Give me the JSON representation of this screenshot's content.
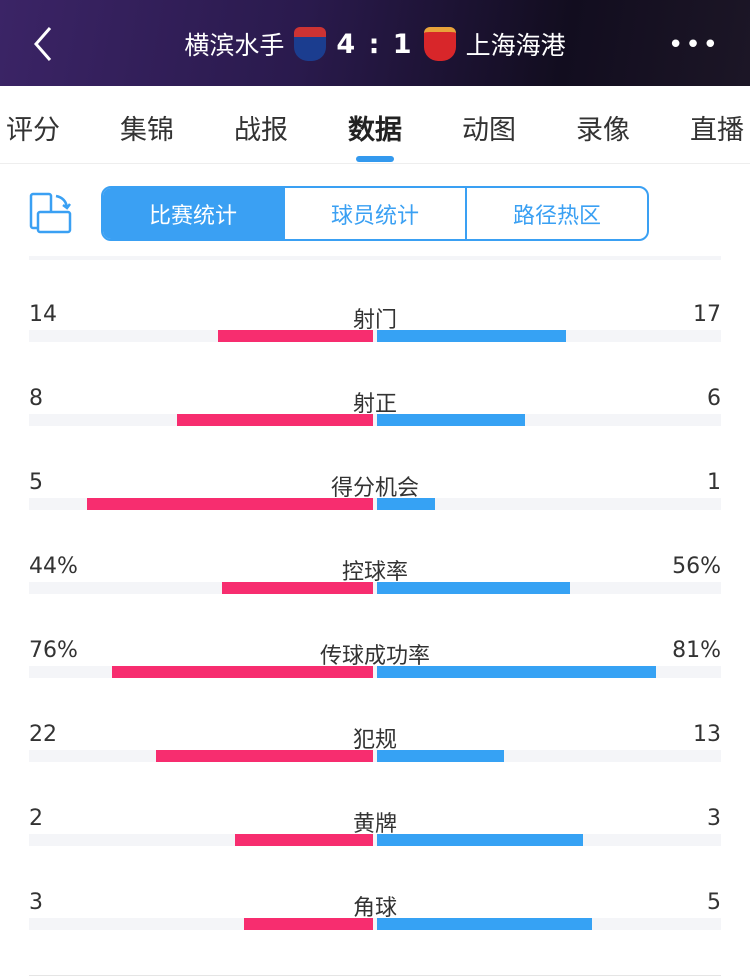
{
  "header": {
    "home_team": "横滨水手",
    "score": "4 : 1",
    "away_team": "上海海港",
    "home_color": "#1b3d8f",
    "away_color": "#d8262a"
  },
  "tabs": [
    "评分",
    "集锦",
    "战报",
    "数据",
    "动图",
    "录像",
    "直播"
  ],
  "active_tab": "数据",
  "segments": [
    "比赛统计",
    "球员统计",
    "路径热区"
  ],
  "active_segment": "比赛统计",
  "colors": {
    "home": "#f72d6f",
    "away": "#36a2f4",
    "accent": "#3aa0f3"
  },
  "stats": [
    {
      "label": "射门",
      "home": "14",
      "away": "17",
      "home_fill": 0.45,
      "away_fill": 0.55
    },
    {
      "label": "射正",
      "home": "8",
      "away": "6",
      "home_fill": 0.57,
      "away_fill": 0.43
    },
    {
      "label": "得分机会",
      "home": "5",
      "away": "1",
      "home_fill": 0.83,
      "away_fill": 0.17
    },
    {
      "label": "控球率",
      "home": "44%",
      "away": "56%",
      "home_fill": 0.44,
      "away_fill": 0.56
    },
    {
      "label": "传球成功率",
      "home": "76%",
      "away": "81%",
      "home_fill": 0.76,
      "away_fill": 0.81
    },
    {
      "label": "犯规",
      "home": "22",
      "away": "13",
      "home_fill": 0.63,
      "away_fill": 0.37
    },
    {
      "label": "黄牌",
      "home": "2",
      "away": "3",
      "home_fill": 0.4,
      "away_fill": 0.6
    },
    {
      "label": "角球",
      "home": "3",
      "away": "5",
      "home_fill": 0.375,
      "away_fill": 0.625
    }
  ]
}
